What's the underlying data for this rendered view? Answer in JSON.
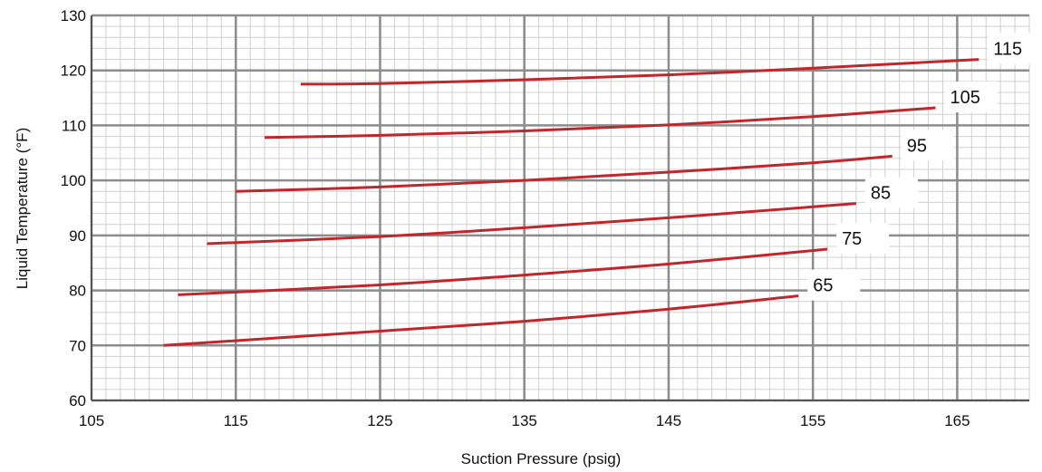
{
  "chart_data": {
    "type": "line",
    "title": "",
    "xlabel": "Suction Pressure (psig)",
    "ylabel": "Liquid Temperature (°F)",
    "xlim": [
      105,
      170
    ],
    "ylim": [
      60,
      130
    ],
    "x_ticks": [
      105,
      115,
      125,
      135,
      145,
      155,
      165
    ],
    "y_ticks": [
      60,
      70,
      80,
      90,
      100,
      110,
      120,
      130
    ],
    "grid": true,
    "series": [
      {
        "name": "115",
        "points": [
          [
            119.5,
            117.5
          ],
          [
            125,
            117.6
          ],
          [
            135,
            118.3
          ],
          [
            145,
            119.2
          ],
          [
            155,
            120.4
          ],
          [
            166.5,
            122.0
          ]
        ]
      },
      {
        "name": "105",
        "points": [
          [
            117,
            107.8
          ],
          [
            125,
            108.2
          ],
          [
            135,
            109.0
          ],
          [
            145,
            110.1
          ],
          [
            155,
            111.6
          ],
          [
            163.5,
            113.2
          ]
        ]
      },
      {
        "name": "95",
        "points": [
          [
            115,
            98.0
          ],
          [
            125,
            98.8
          ],
          [
            135,
            100.0
          ],
          [
            145,
            101.5
          ],
          [
            155,
            103.2
          ],
          [
            160.5,
            104.4
          ]
        ]
      },
      {
        "name": "85",
        "points": [
          [
            113,
            88.5
          ],
          [
            125,
            89.8
          ],
          [
            135,
            91.4
          ],
          [
            145,
            93.2
          ],
          [
            155,
            95.2
          ],
          [
            158,
            95.8
          ]
        ]
      },
      {
        "name": "75",
        "points": [
          [
            111,
            79.2
          ],
          [
            125,
            81.0
          ],
          [
            135,
            82.8
          ],
          [
            145,
            84.8
          ],
          [
            156,
            87.5
          ]
        ]
      },
      {
        "name": "65",
        "points": [
          [
            110,
            70.0
          ],
          [
            125,
            72.6
          ],
          [
            135,
            74.4
          ],
          [
            145,
            76.6
          ],
          [
            154,
            79.0
          ]
        ]
      }
    ],
    "colors": {
      "line": "#c0272d",
      "major_grid": "#8c8c8c",
      "minor_grid": "#d0d0d0",
      "axis": "#555555"
    }
  }
}
